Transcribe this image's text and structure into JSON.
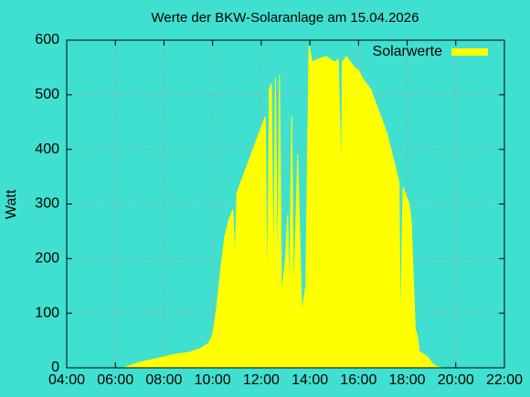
{
  "chart_data": {
    "type": "area",
    "title": "Werte der BKW-Solaranlage am 15.04.2026",
    "y_label": "Watt",
    "series": [
      {
        "name": "Solarwerte",
        "color": "#ffff00",
        "x": [
          "06:20",
          "06:40",
          "07:00",
          "07:30",
          "08:00",
          "08:30",
          "09:00",
          "09:30",
          "09:50",
          "10:00",
          "10:10",
          "10:20",
          "10:30",
          "10:40",
          "10:50",
          "10:55",
          "11:00",
          "11:10",
          "11:20",
          "11:30",
          "11:40",
          "11:50",
          "12:00",
          "12:10",
          "12:15",
          "12:20",
          "12:25",
          "12:30",
          "12:35",
          "12:40",
          "12:45",
          "12:50",
          "13:00",
          "13:05",
          "13:10",
          "13:15",
          "13:20",
          "13:30",
          "13:40",
          "13:50",
          "13:58",
          "14:05",
          "14:20",
          "14:40",
          "15:00",
          "15:10",
          "15:18",
          "15:20",
          "15:30",
          "15:50",
          "16:00",
          "16:10",
          "16:20",
          "16:30",
          "16:40",
          "16:50",
          "17:00",
          "17:10",
          "17:20",
          "17:30",
          "17:40",
          "17:43",
          "17:50",
          "17:55",
          "18:05",
          "18:10",
          "18:20",
          "18:25",
          "18:30",
          "18:40",
          "18:50",
          "19:00",
          "19:10",
          "19:20",
          "19:30"
        ],
        "values": [
          0,
          5,
          10,
          15,
          20,
          25,
          28,
          35,
          45,
          60,
          110,
          180,
          240,
          270,
          290,
          190,
          320,
          340,
          360,
          380,
          400,
          420,
          440,
          460,
          100,
          510,
          520,
          130,
          530,
          120,
          535,
          130,
          200,
          280,
          110,
          460,
          120,
          390,
          100,
          150,
          590,
          560,
          565,
          570,
          560,
          565,
          330,
          560,
          570,
          550,
          545,
          530,
          520,
          510,
          490,
          470,
          450,
          430,
          400,
          370,
          340,
          50,
          330,
          320,
          300,
          270,
          70,
          60,
          30,
          25,
          20,
          10,
          3,
          1,
          0
        ]
      }
    ],
    "xlim": [
      "04:00",
      "22:00"
    ],
    "xticks": [
      "04:00",
      "06:00",
      "08:00",
      "10:00",
      "12:00",
      "14:00",
      "16:00",
      "18:00",
      "20:00",
      "22:00"
    ],
    "ylim": [
      0,
      600
    ],
    "yticks": [
      0,
      100,
      200,
      300,
      400,
      500,
      600
    ],
    "grid": true,
    "legend": "top right"
  }
}
